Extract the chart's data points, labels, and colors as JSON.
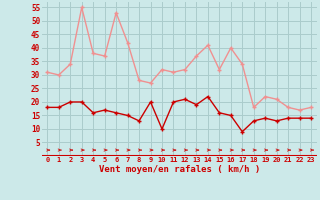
{
  "x": [
    0,
    1,
    2,
    3,
    4,
    5,
    6,
    7,
    8,
    9,
    10,
    11,
    12,
    13,
    14,
    15,
    16,
    17,
    18,
    19,
    20,
    21,
    22,
    23
  ],
  "wind_mean": [
    18,
    18,
    20,
    20,
    16,
    17,
    16,
    15,
    13,
    20,
    10,
    20,
    21,
    19,
    22,
    16,
    15,
    9,
    13,
    14,
    13,
    14,
    14,
    14
  ],
  "wind_gust": [
    31,
    30,
    34,
    55,
    38,
    37,
    53,
    42,
    28,
    27,
    32,
    31,
    32,
    37,
    41,
    32,
    40,
    34,
    18,
    22,
    21,
    18,
    17,
    18
  ],
  "bg_color": "#cce9e9",
  "grid_color": "#aacccc",
  "mean_color": "#cc0000",
  "gust_color": "#f09090",
  "xlabel": "Vent moyen/en rafales ( km/h )",
  "xlabel_color": "#cc0000",
  "tick_color": "#cc0000",
  "ylim": [
    0,
    57
  ],
  "yticks": [
    5,
    10,
    15,
    20,
    25,
    30,
    35,
    40,
    45,
    50,
    55
  ],
  "arrow_color": "#cc0000"
}
